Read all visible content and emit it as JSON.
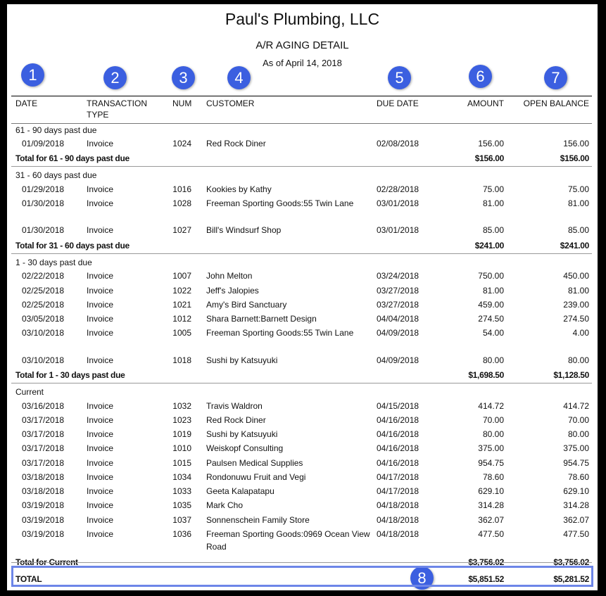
{
  "report": {
    "company": "Paul's Plumbing, LLC",
    "title": "A/R AGING DETAIL",
    "as_of": "As of April 14, 2018"
  },
  "badges": [
    "1",
    "2",
    "3",
    "4",
    "5",
    "6",
    "7",
    "8"
  ],
  "columns": {
    "date": "DATE",
    "type_line1": "TRANSACTION",
    "type_line2": "TYPE",
    "num": "NUM",
    "customer": "CUSTOMER",
    "due_date": "DUE DATE",
    "amount": "AMOUNT",
    "open_balance": "OPEN BALANCE"
  },
  "sections": [
    {
      "label": "61 - 90 days past due",
      "rows": [
        {
          "date": "01/09/2018",
          "type": "Invoice",
          "num": "1024",
          "customer": "Red Rock Diner",
          "due": "02/08/2018",
          "amount": "156.00",
          "open": "156.00"
        }
      ],
      "total_label": "Total for 61 - 90 days past due",
      "total_amount": "$156.00",
      "total_open": "$156.00"
    },
    {
      "label": "31 - 60 days past due",
      "rows": [
        {
          "date": "01/29/2018",
          "type": "Invoice",
          "num": "1016",
          "customer": "Kookies by Kathy",
          "due": "02/28/2018",
          "amount": "75.00",
          "open": "75.00"
        },
        {
          "date": "01/30/2018",
          "type": "Invoice",
          "num": "1028",
          "customer": "Freeman Sporting Goods:55 Twin Lane",
          "due": "03/01/2018",
          "amount": "81.00",
          "open": "81.00"
        },
        {
          "date": "01/30/2018",
          "type": "Invoice",
          "num": "1027",
          "customer": "Bill's Windsurf Shop",
          "due": "03/01/2018",
          "amount": "85.00",
          "open": "85.00"
        }
      ],
      "total_label": "Total for 31 - 60 days past due",
      "total_amount": "$241.00",
      "total_open": "$241.00"
    },
    {
      "label": "1 - 30 days past due",
      "rows": [
        {
          "date": "02/22/2018",
          "type": "Invoice",
          "num": "1007",
          "customer": "John Melton",
          "due": "03/24/2018",
          "amount": "750.00",
          "open": "450.00"
        },
        {
          "date": "02/25/2018",
          "type": "Invoice",
          "num": "1022",
          "customer": "Jeff's Jalopies",
          "due": "03/27/2018",
          "amount": "81.00",
          "open": "81.00"
        },
        {
          "date": "02/25/2018",
          "type": "Invoice",
          "num": "1021",
          "customer": "Amy's Bird Sanctuary",
          "due": "03/27/2018",
          "amount": "459.00",
          "open": "239.00"
        },
        {
          "date": "03/05/2018",
          "type": "Invoice",
          "num": "1012",
          "customer": "Shara Barnett:Barnett Design",
          "due": "04/04/2018",
          "amount": "274.50",
          "open": "274.50"
        },
        {
          "date": "03/10/2018",
          "type": "Invoice",
          "num": "1005",
          "customer": "Freeman Sporting Goods:55 Twin Lane",
          "due": "04/09/2018",
          "amount": "54.00",
          "open": "4.00"
        },
        {
          "date": "03/10/2018",
          "type": "Invoice",
          "num": "1018",
          "customer": "Sushi by Katsuyuki",
          "due": "04/09/2018",
          "amount": "80.00",
          "open": "80.00"
        }
      ],
      "total_label": "Total for 1 - 30 days past due",
      "total_amount": "$1,698.50",
      "total_open": "$1,128.50"
    },
    {
      "label": "Current",
      "rows": [
        {
          "date": "03/16/2018",
          "type": "Invoice",
          "num": "1032",
          "customer": "Travis Waldron",
          "due": "04/15/2018",
          "amount": "414.72",
          "open": "414.72"
        },
        {
          "date": "03/17/2018",
          "type": "Invoice",
          "num": "1023",
          "customer": "Red Rock Diner",
          "due": "04/16/2018",
          "amount": "70.00",
          "open": "70.00"
        },
        {
          "date": "03/17/2018",
          "type": "Invoice",
          "num": "1019",
          "customer": "Sushi by Katsuyuki",
          "due": "04/16/2018",
          "amount": "80.00",
          "open": "80.00"
        },
        {
          "date": "03/17/2018",
          "type": "Invoice",
          "num": "1010",
          "customer": "Weiskopf Consulting",
          "due": "04/16/2018",
          "amount": "375.00",
          "open": "375.00"
        },
        {
          "date": "03/17/2018",
          "type": "Invoice",
          "num": "1015",
          "customer": "Paulsen Medical Supplies",
          "due": "04/16/2018",
          "amount": "954.75",
          "open": "954.75"
        },
        {
          "date": "03/18/2018",
          "type": "Invoice",
          "num": "1034",
          "customer": "Rondonuwu Fruit and Vegi",
          "due": "04/17/2018",
          "amount": "78.60",
          "open": "78.60"
        },
        {
          "date": "03/18/2018",
          "type": "Invoice",
          "num": "1033",
          "customer": "Geeta Kalapatapu",
          "due": "04/17/2018",
          "amount": "629.10",
          "open": "629.10"
        },
        {
          "date": "03/19/2018",
          "type": "Invoice",
          "num": "1035",
          "customer": "Mark Cho",
          "due": "04/18/2018",
          "amount": "314.28",
          "open": "314.28"
        },
        {
          "date": "03/19/2018",
          "type": "Invoice",
          "num": "1037",
          "customer": "Sonnenschein Family Store",
          "due": "04/18/2018",
          "amount": "362.07",
          "open": "362.07"
        },
        {
          "date": "03/19/2018",
          "type": "Invoice",
          "num": "1036",
          "customer": "Freeman Sporting Goods:0969 Ocean View Road",
          "due": "04/18/2018",
          "amount": "477.50",
          "open": "477.50"
        }
      ],
      "total_label": "Total for Current",
      "total_amount": "$3,756.02",
      "total_open": "$3,756.02"
    }
  ],
  "grand_total": {
    "label": "TOTAL",
    "amount": "$5,851.52",
    "open": "$5,281.52"
  },
  "colors": {
    "badge": "#3b5fe0",
    "highlight_border": "#6d86e8"
  }
}
